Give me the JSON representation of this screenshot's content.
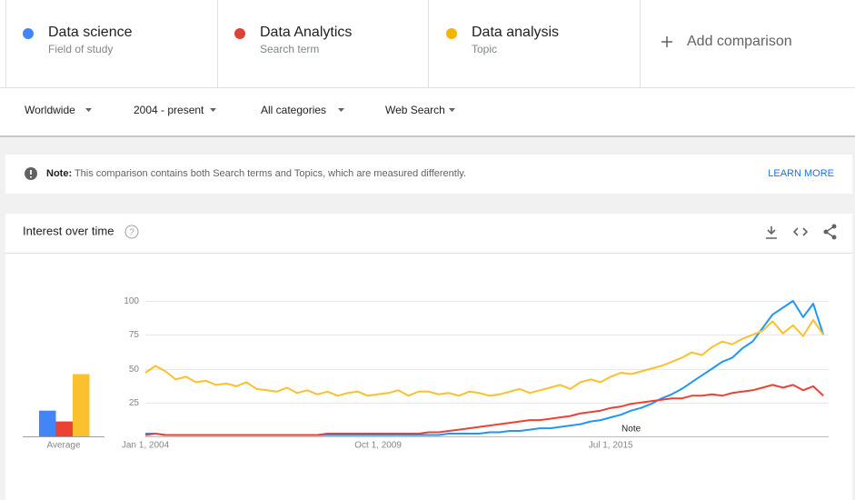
{
  "terms": [
    {
      "name": "Data science",
      "type": "Field of study",
      "color": "#4285f4"
    },
    {
      "name": "Data Analytics",
      "type": "Search term",
      "color": "#db4437"
    },
    {
      "name": "Data analysis",
      "type": "Topic",
      "color": "#f4b400"
    }
  ],
  "add_comparison": "Add comparison",
  "filters": [
    "Worldwide",
    "2004 - present",
    "All categories",
    "Web Search"
  ],
  "note": {
    "label": "Note:",
    "text": " This comparison contains both Search terms and Topics, which are measured differently.",
    "link": "LEARN MORE"
  },
  "panel": {
    "title": "Interest over time"
  },
  "chart_data": [
    {
      "type": "bar",
      "categories": [
        "Average"
      ],
      "ylim": [
        0,
        100
      ],
      "series": [
        {
          "color": "#4285f4",
          "values": [
            19
          ]
        },
        {
          "color": "#ea4335",
          "values": [
            11
          ]
        },
        {
          "color": "#fbc02d",
          "values": [
            46
          ]
        }
      ]
    },
    {
      "type": "line",
      "grid": true,
      "ylim": [
        0,
        100
      ],
      "yticks": [
        25,
        50,
        75,
        100
      ],
      "xlim": [
        "2004-01-01",
        "2020-11-01"
      ],
      "xticks": [
        {
          "value": "2004-01-01",
          "label": "Jan 1, 2004"
        },
        {
          "value": "2009-10-01",
          "label": "Oct 1, 2009"
        },
        {
          "value": "2015-07-01",
          "label": "Jul 1, 2015"
        }
      ],
      "annotation": {
        "text": "Note",
        "x": "2016-01-01"
      },
      "x": [
        "2004-01-01",
        "2004-04-01",
        "2004-07-01",
        "2004-10-01",
        "2005-01-01",
        "2005-04-01",
        "2005-07-01",
        "2005-10-01",
        "2006-01-01",
        "2006-04-01",
        "2006-07-01",
        "2006-10-01",
        "2007-01-01",
        "2007-04-01",
        "2007-07-01",
        "2007-10-01",
        "2008-01-01",
        "2008-04-01",
        "2008-07-01",
        "2008-10-01",
        "2009-01-01",
        "2009-04-01",
        "2009-07-01",
        "2009-10-01",
        "2010-01-01",
        "2010-04-01",
        "2010-07-01",
        "2010-10-01",
        "2011-01-01",
        "2011-04-01",
        "2011-07-01",
        "2011-10-01",
        "2012-01-01",
        "2012-04-01",
        "2012-07-01",
        "2012-10-01",
        "2013-01-01",
        "2013-04-01",
        "2013-07-01",
        "2013-10-01",
        "2014-01-01",
        "2014-04-01",
        "2014-07-01",
        "2014-10-01",
        "2015-01-01",
        "2015-04-01",
        "2015-07-01",
        "2015-10-01",
        "2016-01-01",
        "2016-04-01",
        "2016-07-01",
        "2016-10-01",
        "2017-01-01",
        "2017-04-01",
        "2017-07-01",
        "2017-10-01",
        "2018-01-01",
        "2018-04-01",
        "2018-07-01",
        "2018-10-01",
        "2019-01-01",
        "2019-04-01",
        "2019-07-01",
        "2019-10-01",
        "2020-01-01",
        "2020-04-01",
        "2020-07-01",
        "2020-10-01"
      ],
      "series": [
        {
          "color": "#2196f3",
          "values": [
            2,
            2,
            1,
            1,
            1,
            1,
            1,
            1,
            1,
            1,
            1,
            1,
            1,
            1,
            1,
            1,
            1,
            1,
            1,
            1,
            1,
            1,
            1,
            1,
            1,
            1,
            1,
            1,
            1,
            1,
            2,
            2,
            2,
            2,
            3,
            3,
            4,
            4,
            5,
            6,
            6,
            7,
            8,
            9,
            11,
            12,
            14,
            16,
            19,
            21,
            24,
            28,
            31,
            35,
            40,
            45,
            50,
            55,
            58,
            65,
            70,
            80,
            90,
            95,
            100,
            88,
            98,
            75
          ]
        },
        {
          "color": "#ea4335",
          "values": [
            1,
            2,
            1,
            1,
            1,
            1,
            1,
            1,
            1,
            1,
            1,
            1,
            1,
            1,
            1,
            1,
            1,
            1,
            2,
            2,
            2,
            2,
            2,
            2,
            2,
            2,
            2,
            2,
            3,
            3,
            4,
            5,
            6,
            7,
            8,
            9,
            10,
            11,
            12,
            12,
            13,
            14,
            15,
            17,
            18,
            19,
            21,
            22,
            24,
            25,
            26,
            27,
            28,
            28,
            30,
            30,
            31,
            30,
            32,
            33,
            34,
            36,
            38,
            36,
            38,
            34,
            37,
            30
          ]
        },
        {
          "color": "#fbc02d",
          "values": [
            47,
            52,
            48,
            42,
            44,
            40,
            41,
            38,
            39,
            37,
            40,
            35,
            34,
            33,
            36,
            32,
            34,
            31,
            33,
            30,
            32,
            33,
            30,
            31,
            32,
            34,
            30,
            33,
            33,
            31,
            32,
            30,
            33,
            32,
            30,
            31,
            33,
            35,
            32,
            34,
            36,
            38,
            35,
            40,
            42,
            40,
            44,
            47,
            46,
            48,
            50,
            52,
            55,
            58,
            62,
            60,
            66,
            70,
            68,
            72,
            75,
            78,
            85,
            76,
            82,
            74,
            86,
            75
          ]
        }
      ]
    }
  ]
}
